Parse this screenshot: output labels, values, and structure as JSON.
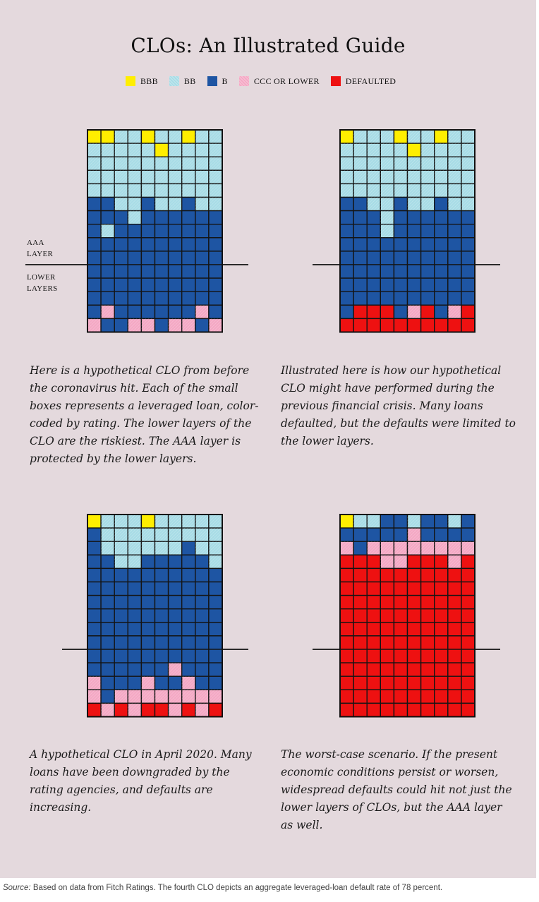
{
  "title": "CLOs: An Illustrated Guide",
  "legend": [
    {
      "key": "Y",
      "label": "BBB",
      "color": "#ffee00"
    },
    {
      "key": "L",
      "label": "BB",
      "color": "#a8dce6"
    },
    {
      "key": "D",
      "label": "B",
      "color": "#1e55a3"
    },
    {
      "key": "P",
      "label": "CCC OR LOWER",
      "color": "#f4a8c4"
    },
    {
      "key": "R",
      "label": "DEFAULTED",
      "color": "#ee1111"
    }
  ],
  "layer_labels": {
    "aaa": "AAA LAYER",
    "lower": "LOWER LAYERS"
  },
  "chart_data": [
    {
      "type": "waffle",
      "title": "Hypothetical CLO before the coronavirus",
      "columns": 10,
      "rows": 15,
      "aaa_rows": 10,
      "lower_rows": 5,
      "cells": [
        "YYLLYLLYLL",
        "LLLLLYLLLL",
        "LLLLLLLLLL",
        "LLLLLLLLLL",
        "LLLLLLLLLL",
        "DDLLDLLDLL",
        "DDDLDDDDDD",
        "DLDDDDDDDD",
        "DDDDDDDDDD",
        "DDDDDDDDDD",
        "DDDDDDDDDD",
        "DDDDDDDDDD",
        "DDDDDDDDDD",
        "DPDDDDDDPD",
        "PDDPPDPPDP"
      ],
      "caption": "Here is a hypothetical CLO from before the coronavirus hit. Each of the small boxes represents a leveraged loan, color-coded by rating. The lower layers of the CLO are the riskiest. The AAA layer is protected by the lower layers."
    },
    {
      "type": "waffle",
      "title": "Hypothetical CLO during the previous financial crisis",
      "columns": 10,
      "rows": 15,
      "aaa_rows": 10,
      "lower_rows": 5,
      "cells": [
        "YLLLYLLYLL",
        "LLLLLYLLLL",
        "LLLLLLLLLL",
        "LLLLLLLLLL",
        "LLLLLLLLLL",
        "DDLLDLLDLL",
        "DDDLDDDDDD",
        "DDDLDDDDDD",
        "DDDDDDDDDD",
        "DDDDDDDDDD",
        "DDDDDDDDDD",
        "DDDDDDDDDD",
        "DDDDDDDDDD",
        "DRRRDPRDPR",
        "RRRRRRRRRR"
      ],
      "caption": "Illustrated here is how our hypothetical CLO might have performed during the previous financial crisis. Many loans defaulted, but the defaults were limited to the lower layers."
    },
    {
      "type": "waffle",
      "title": "Hypothetical CLO in April 2020",
      "columns": 10,
      "rows": 15,
      "aaa_rows": 10,
      "lower_rows": 5,
      "cells": [
        "YLLLYLLLLL",
        "DLLLLLLLLL",
        "DLLLLLLDLL",
        "DDLLDDDDDL",
        "DDDDDDDDDD",
        "DDDDDDDDDD",
        "DDDDDDDDDD",
        "DDDDDDDDDD",
        "DDDDDDDDDD",
        "DDDDDDDDDD",
        "DDDDDDDDDD",
        "DDDDDDPDDD",
        "PDDDPDDPDD",
        "PDPPPPPPPP",
        "RPRPRRPRPR"
      ],
      "caption": "A hypothetical CLO in April 2020. Many loans have been downgraded by the rating agencies, and defaults are increasing."
    },
    {
      "type": "waffle",
      "title": "Worst-case scenario",
      "columns": 10,
      "rows": 15,
      "aaa_rows": 10,
      "lower_rows": 5,
      "cells": [
        "YLLDDLDDLD",
        "DDDDDPDDDD",
        "PDPPPPPPPP",
        "RRRPPRRRPR",
        "RRRRRRRRRR",
        "RRRRRRRRRR",
        "RRRRRRRRRR",
        "RRRRRRRRRR",
        "RRRRRRRRRR",
        "RRRRRRRRRR",
        "RRRRRRRRRR",
        "RRRRRRRRRR",
        "RRRRRRRRRR",
        "RRRRRRRRRR",
        "RRRRRRRRRR"
      ],
      "caption": "The worst-case scenario. If the present economic conditions persist or worsen, widespread defaults could hit not just the lower layers of CLOs, but the AAA layer as well."
    }
  ],
  "source": {
    "label": "Source:",
    "text": " Based on data from Fitch Ratings. The fourth CLO depicts an aggregate leveraged-loan default rate of 78 percent."
  }
}
